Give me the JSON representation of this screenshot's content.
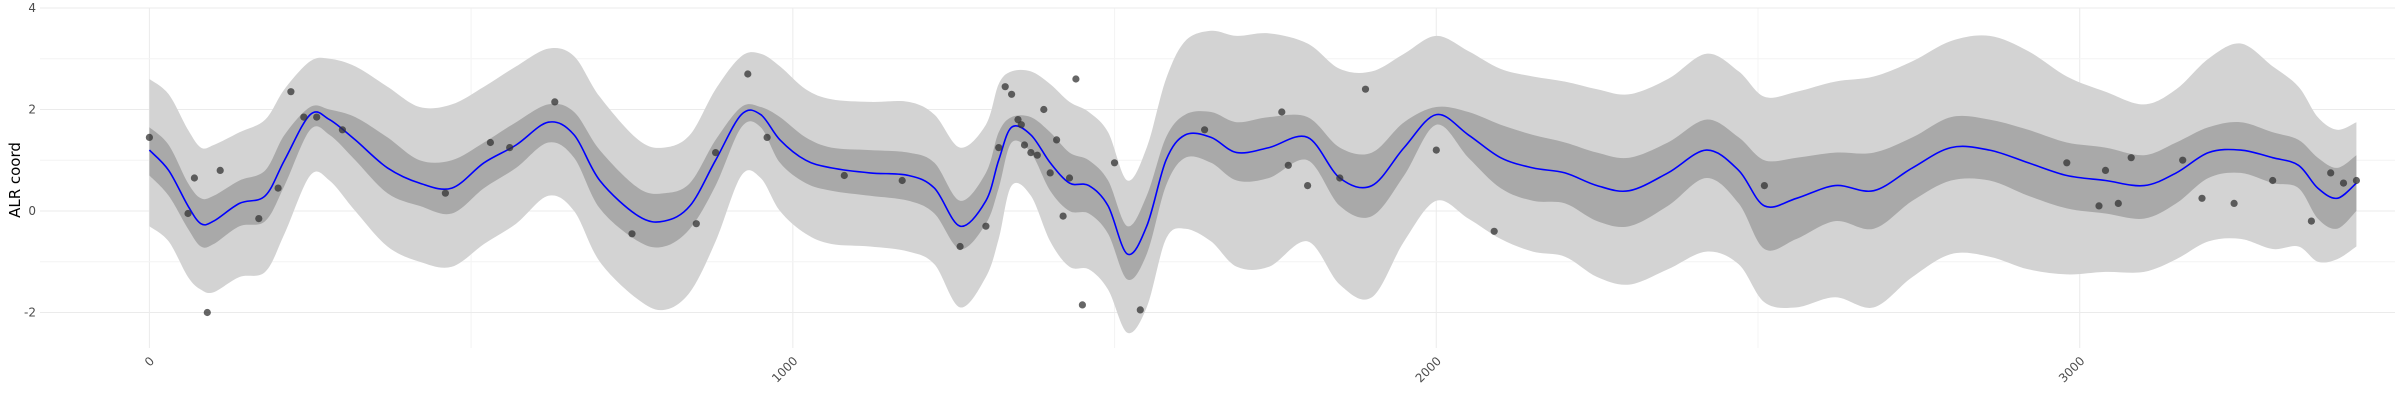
{
  "chart_data": {
    "type": "line",
    "title": "",
    "xlabel": "",
    "ylabel": "ALR coord",
    "xlim": [
      -170,
      3490
    ],
    "ylim": [
      -2.7,
      4
    ],
    "xticks": [
      {
        "value": 0,
        "label": "0"
      },
      {
        "value": 1000,
        "label": "1000"
      },
      {
        "value": 2000,
        "label": "2000"
      },
      {
        "value": 3000,
        "label": "3000"
      }
    ],
    "yticks": [
      {
        "value": -2,
        "label": "-2"
      },
      {
        "value": 0,
        "label": "0"
      },
      {
        "value": 2,
        "label": "2"
      },
      {
        "value": 4,
        "label": "4"
      }
    ],
    "grid": true,
    "colors": {
      "mean_line": "#0000ff",
      "inner_band": "#a9a9a9",
      "outer_band": "#d3d3d3",
      "points": "#333333",
      "grid": "#ebebeb",
      "tick_text": "#4d4d4d"
    },
    "mean": {
      "x": [
        0,
        30,
        60,
        80,
        100,
        140,
        180,
        210,
        250,
        280,
        320,
        370,
        420,
        470,
        520,
        570,
        620,
        660,
        700,
        760,
        800,
        840,
        880,
        920,
        950,
        980,
        1020,
        1060,
        1120,
        1180,
        1220,
        1260,
        1300,
        1320,
        1340,
        1370,
        1400,
        1430,
        1460,
        1490,
        1520,
        1550,
        1580,
        1610,
        1650,
        1690,
        1740,
        1800,
        1850,
        1900,
        1950,
        2000,
        2050,
        2100,
        2150,
        2200,
        2250,
        2300,
        2360,
        2420,
        2470,
        2510,
        2560,
        2620,
        2680,
        2740,
        2800,
        2860,
        2920,
        2980,
        3040,
        3100,
        3150,
        3200,
        3250,
        3300,
        3340,
        3370,
        3400,
        3430
      ],
      "y": [
        1.2,
        0.8,
        0.1,
        -0.25,
        -0.2,
        0.15,
        0.3,
        1.0,
        1.9,
        1.8,
        1.4,
        0.85,
        0.55,
        0.45,
        0.95,
        1.3,
        1.75,
        1.5,
        0.6,
        -0.1,
        -0.2,
        0.1,
        1.0,
        1.9,
        1.9,
        1.4,
        1.0,
        0.85,
        0.75,
        0.7,
        0.45,
        -0.3,
        0.2,
        1.0,
        1.65,
        1.5,
        0.95,
        0.55,
        0.5,
        0.1,
        -0.85,
        -0.3,
        1.0,
        1.5,
        1.45,
        1.15,
        1.25,
        1.45,
        0.65,
        0.5,
        1.25,
        1.9,
        1.5,
        1.05,
        0.85,
        0.75,
        0.5,
        0.4,
        0.75,
        1.2,
        0.8,
        0.1,
        0.25,
        0.5,
        0.4,
        0.85,
        1.25,
        1.2,
        0.95,
        0.7,
        0.6,
        0.5,
        0.75,
        1.15,
        1.2,
        1.05,
        0.9,
        0.45,
        0.25,
        0.55
      ]
    },
    "inner_band": {
      "upper": [
        1.65,
        1.3,
        0.55,
        0.25,
        0.3,
        0.6,
        0.8,
        1.5,
        2.05,
        2.0,
        1.85,
        1.45,
        1.0,
        1.0,
        1.35,
        1.75,
        2.1,
        1.95,
        1.2,
        0.45,
        0.35,
        0.55,
        1.4,
        2.05,
        2.05,
        1.85,
        1.45,
        1.25,
        1.2,
        1.15,
        0.95,
        0.2,
        0.75,
        1.55,
        1.85,
        1.85,
        1.55,
        1.15,
        1.0,
        0.6,
        -0.3,
        0.3,
        1.45,
        1.9,
        1.95,
        1.75,
        1.85,
        1.85,
        1.25,
        1.15,
        1.75,
        2.05,
        1.95,
        1.7,
        1.5,
        1.35,
        1.15,
        1.05,
        1.35,
        1.8,
        1.45,
        1.0,
        1.05,
        1.15,
        1.15,
        1.45,
        1.85,
        1.8,
        1.6,
        1.35,
        1.25,
        1.1,
        1.35,
        1.65,
        1.75,
        1.55,
        1.4,
        1.05,
        0.85,
        1.1
      ],
      "lower": [
        0.7,
        0.3,
        -0.35,
        -0.7,
        -0.65,
        -0.3,
        -0.2,
        0.5,
        1.6,
        1.5,
        1.0,
        0.35,
        0.1,
        -0.05,
        0.45,
        0.85,
        1.35,
        1.05,
        0.05,
        -0.6,
        -0.7,
        -0.35,
        0.5,
        1.65,
        1.65,
        0.95,
        0.55,
        0.4,
        0.3,
        0.2,
        -0.05,
        -0.75,
        -0.25,
        0.45,
        1.35,
        1.15,
        0.4,
        0.0,
        -0.05,
        -0.45,
        -1.35,
        -0.85,
        0.5,
        1.05,
        0.95,
        0.6,
        0.65,
        1.0,
        0.1,
        -0.1,
        0.7,
        1.7,
        1.05,
        0.45,
        0.2,
        0.15,
        -0.2,
        -0.3,
        0.1,
        0.65,
        0.15,
        -0.75,
        -0.55,
        -0.2,
        -0.35,
        0.2,
        0.6,
        0.6,
        0.3,
        0.05,
        -0.05,
        -0.15,
        0.15,
        0.65,
        0.75,
        0.55,
        0.45,
        -0.15,
        -0.35,
        0.0
      ]
    },
    "outer_band": {
      "upper": [
        2.6,
        2.3,
        1.6,
        1.25,
        1.3,
        1.55,
        1.8,
        2.4,
        2.95,
        3.0,
        2.85,
        2.45,
        2.05,
        2.1,
        2.45,
        2.85,
        3.2,
        3.05,
        2.25,
        1.4,
        1.25,
        1.5,
        2.4,
        3.05,
        3.1,
        2.85,
        2.4,
        2.2,
        2.15,
        2.15,
        1.9,
        1.25,
        1.7,
        2.5,
        2.75,
        2.75,
        2.5,
        2.15,
        1.95,
        1.55,
        0.6,
        1.25,
        2.6,
        3.35,
        3.55,
        3.45,
        3.5,
        3.3,
        2.8,
        2.75,
        3.1,
        3.45,
        3.15,
        2.8,
        2.65,
        2.55,
        2.4,
        2.3,
        2.6,
        3.1,
        2.75,
        2.25,
        2.35,
        2.55,
        2.65,
        2.95,
        3.35,
        3.45,
        3.15,
        2.65,
        2.35,
        2.1,
        2.4,
        3.0,
        3.3,
        2.85,
        2.45,
        1.85,
        1.6,
        1.75
      ],
      "lower": [
        -0.3,
        -0.6,
        -1.3,
        -1.55,
        -1.6,
        -1.3,
        -1.2,
        -0.45,
        0.7,
        0.6,
        0.0,
        -0.7,
        -1.0,
        -1.1,
        -0.65,
        -0.25,
        0.3,
        0.0,
        -1.0,
        -1.75,
        -1.95,
        -1.6,
        -0.6,
        0.7,
        0.65,
        0.0,
        -0.45,
        -0.65,
        -0.7,
        -0.8,
        -1.05,
        -1.9,
        -1.3,
        -0.55,
        0.5,
        0.3,
        -0.6,
        -1.1,
        -1.15,
        -1.55,
        -2.4,
        -1.9,
        -0.55,
        -0.35,
        -0.6,
        -1.1,
        -1.1,
        -0.6,
        -1.45,
        -1.7,
        -0.6,
        0.2,
        -0.15,
        -0.55,
        -0.8,
        -0.9,
        -1.3,
        -1.45,
        -1.15,
        -0.8,
        -1.05,
        -1.8,
        -1.9,
        -1.7,
        -1.9,
        -1.3,
        -0.85,
        -0.9,
        -1.15,
        -1.25,
        -1.2,
        -1.2,
        -0.95,
        -0.6,
        -0.55,
        -0.75,
        -0.7,
        -1.0,
        -0.95,
        -0.7
      ]
    },
    "points": {
      "x": [
        0,
        60,
        70,
        90,
        110,
        170,
        200,
        220,
        240,
        260,
        300,
        460,
        530,
        560,
        630,
        750,
        850,
        880,
        930,
        960,
        1080,
        1170,
        1260,
        1300,
        1320,
        1330,
        1340,
        1350,
        1355,
        1360,
        1370,
        1380,
        1390,
        1400,
        1410,
        1420,
        1430,
        1440,
        1450,
        1500,
        1540,
        1640,
        1760,
        1770,
        1800,
        1850,
        1890,
        2000,
        2090,
        2510,
        2980,
        3030,
        3040,
        3060,
        3080,
        3160,
        3190,
        3240,
        3300,
        3360,
        3390,
        3410,
        3430
      ],
      "y": [
        1.45,
        -0.05,
        0.65,
        -2.0,
        0.8,
        -0.15,
        0.45,
        2.35,
        1.85,
        1.85,
        1.6,
        0.35,
        1.35,
        1.25,
        2.15,
        -0.45,
        -0.25,
        1.15,
        2.7,
        1.45,
        0.7,
        0.6,
        -0.7,
        -0.3,
        1.25,
        2.45,
        2.3,
        1.8,
        1.7,
        1.3,
        1.15,
        1.1,
        2.0,
        0.75,
        1.4,
        -0.1,
        0.65,
        2.6,
        -1.85,
        0.95,
        -1.95,
        1.6,
        1.95,
        0.9,
        0.5,
        0.65,
        2.4,
        1.2,
        -0.4,
        0.5,
        0.95,
        0.1,
        0.8,
        0.15,
        1.05,
        1.0,
        0.25,
        0.15,
        0.6,
        -0.2,
        0.75,
        0.55,
        0.6
      ]
    }
  }
}
